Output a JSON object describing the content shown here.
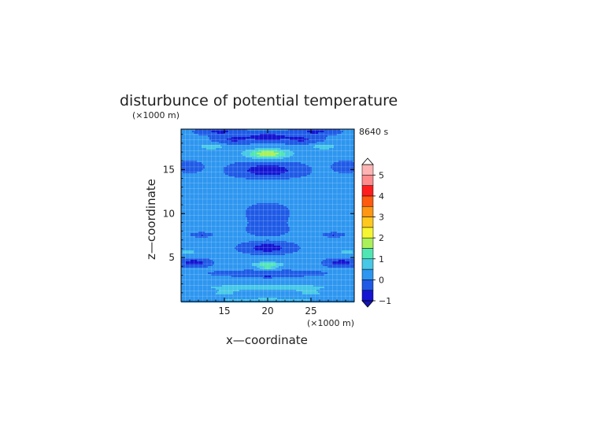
{
  "chart_data": {
    "type": "heatmap",
    "title": "disturbunce of potential temperature",
    "time_label": "8640 s",
    "xlabel": "x—coordinate",
    "ylabel": "z—coordinate",
    "x_unit": "(×1000 m)",
    "y_unit": "(×1000 m)",
    "xlim": [
      10,
      30
    ],
    "ylim": [
      0,
      19.6
    ],
    "x_ticks": [
      "15",
      "20",
      "25"
    ],
    "y_ticks": [
      "5",
      "10",
      "15"
    ],
    "grid": true,
    "colorbar": {
      "levels": [
        -1,
        -0.5,
        0,
        0.5,
        1,
        1.5,
        2,
        2.5,
        3,
        3.5,
        4,
        4.5,
        5
      ],
      "labels": [
        "−1",
        "0",
        "1",
        "2",
        "3",
        "4",
        "5"
      ],
      "colors": [
        "#1414d2",
        "#1e5ae6",
        "#2d96f0",
        "#46c8e6",
        "#50e6b4",
        "#aaf05a",
        "#f5f532",
        "#ffc81e",
        "#ff9614",
        "#ff5a0f",
        "#ff1e1e",
        "#ff8c8c",
        "#ffb4b4"
      ]
    },
    "base_value": 0.05,
    "features": [
      {
        "x": 20,
        "z": 18.7,
        "sx": 2.6,
        "sz": 0.45,
        "v": -0.9
      },
      {
        "x": 14.5,
        "z": 19.3,
        "sx": 2.0,
        "sz": 0.3,
        "v": -0.7
      },
      {
        "x": 25.5,
        "z": 19.3,
        "sx": 2.0,
        "sz": 0.3,
        "v": -0.7
      },
      {
        "x": 16,
        "z": 18.4,
        "sx": 1.8,
        "sz": 0.45,
        "v": -0.6
      },
      {
        "x": 24,
        "z": 18.4,
        "sx": 1.8,
        "sz": 0.45,
        "v": -0.6
      },
      {
        "x": 20,
        "z": 16.8,
        "sx": 2.6,
        "sz": 0.55,
        "v": 1.8
      },
      {
        "x": 13.5,
        "z": 17.6,
        "sx": 1.6,
        "sz": 0.35,
        "v": 0.8
      },
      {
        "x": 26.5,
        "z": 17.6,
        "sx": 1.6,
        "sz": 0.35,
        "v": 0.8
      },
      {
        "x": 20,
        "z": 14.9,
        "sx": 3.0,
        "sz": 0.75,
        "v": -1.0
      },
      {
        "x": 11,
        "z": 15.3,
        "sx": 1.2,
        "sz": 0.5,
        "v": -0.4
      },
      {
        "x": 29,
        "z": 15.3,
        "sx": 1.2,
        "sz": 0.5,
        "v": -0.4
      },
      {
        "x": 20,
        "z": 12.5,
        "sx": 3.5,
        "sz": 1.4,
        "v": 0.25
      },
      {
        "x": 20,
        "z": 10.0,
        "sx": 1.9,
        "sz": 1.2,
        "v": -0.45
      },
      {
        "x": 20,
        "z": 8.2,
        "sx": 2.0,
        "sz": 0.6,
        "v": -0.3
      },
      {
        "x": 14.5,
        "z": 9.0,
        "sx": 2.0,
        "sz": 1.3,
        "v": 0.25
      },
      {
        "x": 25.5,
        "z": 9.0,
        "sx": 2.0,
        "sz": 1.3,
        "v": 0.25
      },
      {
        "x": 12.5,
        "z": 7.6,
        "sx": 0.9,
        "sz": 0.2,
        "v": -0.7
      },
      {
        "x": 27.5,
        "z": 7.6,
        "sx": 0.9,
        "sz": 0.2,
        "v": -0.7
      },
      {
        "x": 20,
        "z": 6.1,
        "sx": 2.2,
        "sz": 0.5,
        "v": -1.0
      },
      {
        "x": 10.8,
        "z": 5.6,
        "sx": 0.9,
        "sz": 0.3,
        "v": 0.8
      },
      {
        "x": 29.2,
        "z": 5.6,
        "sx": 0.9,
        "sz": 0.3,
        "v": 0.8
      },
      {
        "x": 11.5,
        "z": 4.4,
        "sx": 1.4,
        "sz": 0.35,
        "v": -1.0
      },
      {
        "x": 28.5,
        "z": 4.4,
        "sx": 1.4,
        "sz": 0.35,
        "v": -1.0
      },
      {
        "x": 20,
        "z": 4.2,
        "sx": 1.8,
        "sz": 0.3,
        "v": 1.3
      },
      {
        "x": 20,
        "z": 3.8,
        "sx": 0.9,
        "sz": 0.15,
        "v": 1.0
      },
      {
        "x": 20,
        "z": 2.9,
        "sx": 0.5,
        "sz": 0.15,
        "v": -0.7
      },
      {
        "x": 20,
        "z": 3.2,
        "sx": 5.0,
        "sz": 0.3,
        "v": -0.35
      },
      {
        "x": 20,
        "z": 1.6,
        "sx": 9.0,
        "sz": 0.45,
        "v": 0.75
      },
      {
        "x": 15,
        "z": 0.9,
        "sx": 2.0,
        "sz": 0.35,
        "v": 0.5
      },
      {
        "x": 25,
        "z": 0.9,
        "sx": 2.0,
        "sz": 0.35,
        "v": 0.5
      },
      {
        "x": 20,
        "z": 0.2,
        "sx": 9.0,
        "sz": 0.3,
        "v": 0.6
      }
    ]
  }
}
